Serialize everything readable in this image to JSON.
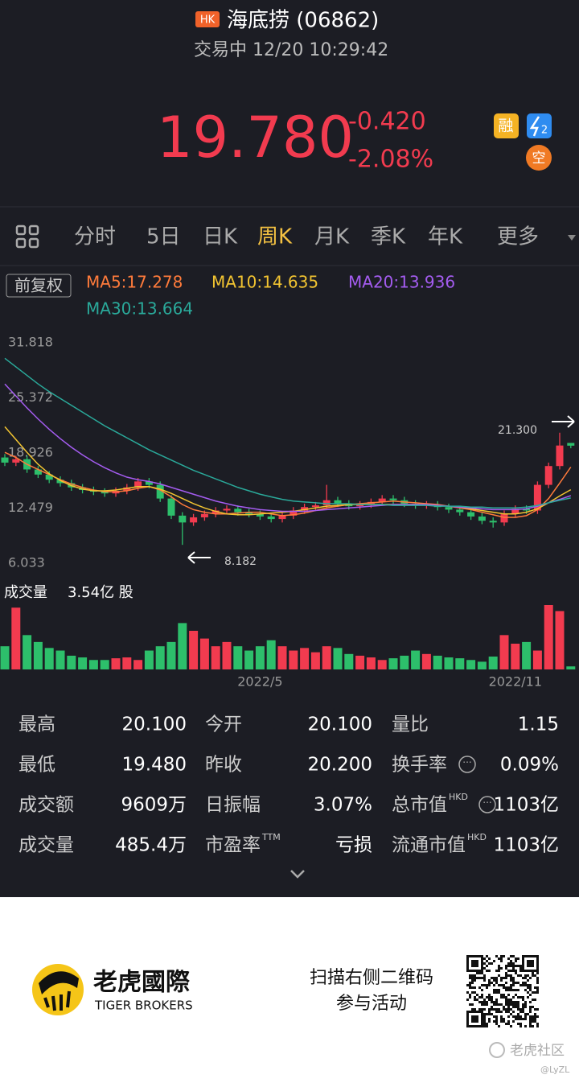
{
  "header": {
    "badge": "HK",
    "title": "海底捞 (06862)",
    "status": "交易中 12/20 10:29:42",
    "price": "19.780",
    "change": "-0.420",
    "change_pct": "-2.08%",
    "icons": [
      "融",
      "2",
      "空"
    ]
  },
  "tabs": {
    "items": [
      "分时",
      "5日",
      "日K",
      "周K",
      "月K",
      "季K",
      "年K",
      "更多"
    ],
    "active": "周K"
  },
  "adjust": "前复权",
  "chart_data": {
    "type": "candlestick",
    "ma": [
      {
        "name": "MA5:17.278",
        "color": "#ff7b3b",
        "values": [
          19.0,
          18.4,
          17.6,
          17.0,
          16.4,
          15.8,
          15.3,
          14.9,
          14.6,
          14.4,
          14.4,
          14.5,
          14.8,
          15.0,
          14.6,
          13.8,
          12.9,
          12.3,
          12.0,
          11.8,
          11.8,
          11.9,
          12.0,
          12.0,
          11.8,
          11.6,
          11.7,
          11.9,
          12.2,
          12.5,
          12.7,
          12.9,
          13.0,
          13.1,
          13.2,
          13.3,
          13.2,
          13.1,
          13.0,
          12.9,
          12.7,
          12.5,
          12.3,
          12.0,
          11.7,
          11.4,
          11.4,
          11.6,
          12.3,
          13.6,
          15.4,
          17.278
        ]
      },
      {
        "name": "MA10:14.635",
        "color": "#f2c431",
        "values": [
          22.0,
          20.5,
          19.0,
          17.6,
          16.5,
          15.7,
          15.1,
          14.7,
          14.5,
          14.5,
          14.6,
          14.8,
          15.0,
          15.0,
          14.7,
          14.2,
          13.6,
          13.0,
          12.5,
          12.1,
          11.8,
          11.7,
          11.7,
          11.8,
          11.9,
          12.0,
          12.1,
          12.3,
          12.5,
          12.7,
          12.8,
          12.9,
          12.9,
          12.9,
          12.9,
          12.9,
          12.9,
          12.9,
          12.9,
          12.8,
          12.7,
          12.6,
          12.4,
          12.2,
          12.0,
          11.8,
          11.8,
          12.0,
          12.4,
          13.1,
          13.9,
          14.635
        ]
      },
      {
        "name": "MA20:13.936",
        "color": "#a45cf0",
        "values": [
          27.0,
          25.6,
          24.2,
          22.9,
          21.7,
          20.6,
          19.6,
          18.7,
          17.9,
          17.2,
          16.6,
          16.1,
          15.8,
          15.6,
          15.3,
          14.9,
          14.5,
          14.1,
          13.7,
          13.3,
          13.0,
          12.7,
          12.5,
          12.3,
          12.2,
          12.1,
          12.1,
          12.1,
          12.2,
          12.3,
          12.4,
          12.5,
          12.6,
          12.7,
          12.8,
          12.9,
          12.9,
          12.9,
          12.9,
          12.8,
          12.7,
          12.6,
          12.5,
          12.4,
          12.3,
          12.3,
          12.3,
          12.4,
          12.7,
          13.1,
          13.5,
          13.936
        ]
      },
      {
        "name": "MA30:13.664",
        "color": "#2aa99a",
        "values": [
          30.0,
          29.0,
          28.0,
          27.0,
          26.1,
          25.3,
          24.5,
          23.7,
          22.9,
          22.1,
          21.4,
          20.7,
          20.0,
          19.3,
          18.7,
          18.1,
          17.5,
          16.9,
          16.4,
          15.9,
          15.4,
          14.9,
          14.5,
          14.1,
          13.8,
          13.5,
          13.3,
          13.2,
          13.1,
          13.0,
          13.0,
          13.0,
          12.9,
          12.9,
          12.9,
          12.8,
          12.8,
          12.8,
          12.8,
          12.7,
          12.7,
          12.7,
          12.6,
          12.6,
          12.5,
          12.5,
          12.5,
          12.6,
          12.8,
          13.1,
          13.4,
          13.664
        ]
      }
    ],
    "open": [
      18.4,
      17.8,
      18.2,
      17.0,
      16.4,
      15.8,
      15.4,
      14.9,
      14.6,
      14.4,
      14.2,
      14.5,
      14.9,
      15.6,
      15.2,
      13.6,
      11.6,
      10.8,
      11.4,
      11.8,
      12.2,
      12.4,
      12.0,
      11.8,
      11.5,
      11.2,
      11.6,
      12.2,
      12.6,
      12.8,
      13.4,
      13.0,
      12.7,
      12.9,
      13.2,
      13.6,
      13.4,
      13.0,
      12.8,
      12.9,
      12.6,
      12.3,
      12.0,
      11.5,
      11.0,
      10.8,
      11.8,
      12.4,
      12.2,
      15.2,
      17.4,
      20.1
    ],
    "high": [
      18.8,
      18.6,
      18.6,
      17.4,
      16.8,
      16.2,
      15.8,
      15.3,
      15.0,
      14.8,
      14.9,
      15.3,
      16.0,
      16.0,
      15.6,
      14.0,
      12.0,
      11.8,
      12.2,
      12.6,
      12.8,
      12.8,
      12.4,
      12.2,
      11.9,
      12.0,
      12.6,
      13.0,
      13.2,
      15.2,
      13.8,
      13.4,
      13.3,
      13.6,
      14.0,
      14.0,
      13.8,
      13.4,
      13.3,
      13.3,
      13.0,
      12.7,
      12.4,
      11.9,
      11.4,
      12.2,
      12.8,
      12.8,
      15.6,
      17.8,
      21.3,
      20.1
    ],
    "low": [
      17.4,
      17.4,
      16.6,
      16.0,
      15.4,
      15.0,
      14.5,
      14.2,
      14.0,
      13.8,
      13.8,
      14.1,
      14.5,
      14.8,
      13.2,
      11.2,
      8.182,
      10.4,
      11.0,
      11.4,
      11.8,
      11.6,
      11.4,
      11.1,
      10.8,
      10.8,
      11.2,
      11.8,
      12.2,
      12.4,
      12.6,
      12.3,
      12.3,
      12.5,
      12.8,
      13.0,
      12.6,
      12.4,
      12.4,
      12.2,
      11.9,
      11.6,
      11.1,
      10.6,
      10.2,
      10.4,
      11.4,
      11.8,
      11.8,
      14.8,
      17.0,
      19.48
    ],
    "close": [
      17.8,
      18.2,
      17.0,
      16.4,
      15.8,
      15.4,
      14.9,
      14.6,
      14.4,
      14.2,
      14.5,
      14.9,
      15.6,
      15.2,
      13.6,
      11.6,
      10.8,
      11.4,
      11.8,
      12.2,
      12.4,
      12.0,
      11.8,
      11.5,
      11.2,
      11.6,
      12.2,
      12.6,
      12.8,
      13.4,
      13.0,
      12.7,
      12.9,
      13.2,
      13.6,
      13.4,
      13.0,
      12.8,
      12.9,
      12.6,
      12.3,
      12.0,
      11.5,
      11.0,
      10.8,
      11.8,
      12.4,
      12.2,
      15.2,
      17.4,
      19.8,
      19.78
    ],
    "volumes": [
      27,
      72,
      40,
      32,
      25,
      22,
      16,
      14,
      11,
      11,
      13,
      14,
      11,
      22,
      27,
      32,
      54,
      45,
      36,
      27,
      32,
      27,
      22,
      27,
      34,
      27,
      22,
      25,
      20,
      27,
      25,
      18,
      16,
      14,
      11,
      13,
      16,
      22,
      18,
      16,
      14,
      13,
      11,
      9,
      15,
      40,
      30,
      32,
      22,
      75,
      68,
      3.54
    ],
    "categories": [
      null,
      null,
      null,
      null,
      null,
      null,
      null,
      null,
      null,
      null,
      null,
      null,
      null,
      null,
      null,
      null,
      null,
      null,
      null,
      null,
      null,
      null,
      null,
      "2022/5",
      null,
      null,
      null,
      null,
      null,
      null,
      null,
      null,
      null,
      null,
      null,
      null,
      null,
      null,
      null,
      null,
      null,
      null,
      null,
      null,
      null,
      null,
      "2022/11",
      null,
      null,
      null,
      null,
      null
    ],
    "ylim": [
      6.033,
      31.818
    ],
    "yticks": [
      31.818,
      25.372,
      18.926,
      12.479,
      6.033
    ],
    "annotations": [
      "21.300",
      "8.182"
    ],
    "volume_label": "成交量",
    "volume_value": "3.54亿 股",
    "up_color": "#f23b4f",
    "down_color": "#2dbf6b"
  },
  "stats": [
    {
      "label": "最高",
      "value": "20.100"
    },
    {
      "label": "今开",
      "value": "20.100"
    },
    {
      "label": "量比",
      "value": "1.15"
    },
    {
      "label": "最低",
      "value": "19.480"
    },
    {
      "label": "昨收",
      "value": "20.200"
    },
    {
      "label": "换手率",
      "value": "0.09%"
    },
    {
      "label": "成交额",
      "value": "9609万"
    },
    {
      "label": "日振幅",
      "value": "3.07%"
    },
    {
      "label": "总市值",
      "sup": "HKD",
      "value": "1103亿"
    },
    {
      "label": "成交量",
      "value": "485.4万"
    },
    {
      "label": "市盈率",
      "sup": "TTM",
      "value": "亏损"
    },
    {
      "label": "流通市值",
      "sup": "HKD",
      "value": "1103亿"
    }
  ],
  "footer": {
    "brand_cn": "老虎國際",
    "brand_en": "TIGER BROKERS",
    "cta": [
      "扫描右侧二维码",
      "参与活动"
    ],
    "watermark": "老虎社区",
    "user": "@LyZL"
  }
}
